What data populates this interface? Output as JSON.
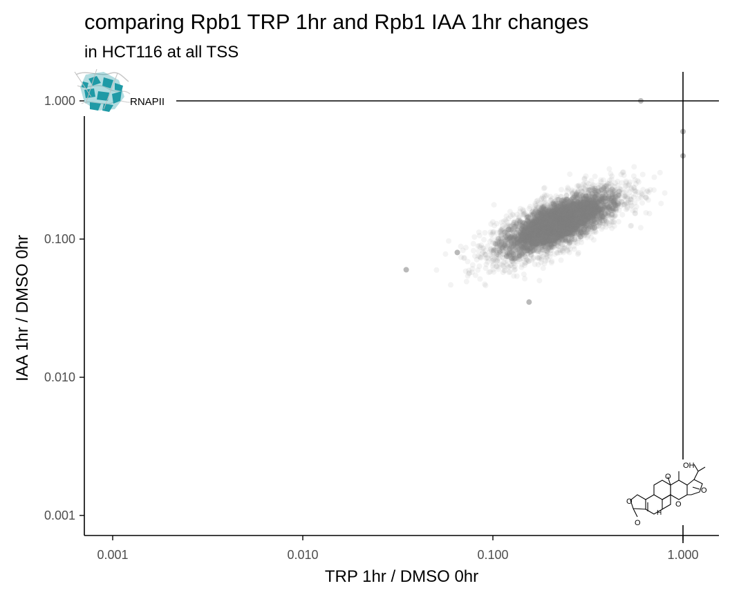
{
  "chart_data": {
    "type": "scatter",
    "title": "comparing Rpb1 TRP 1hr and Rpb1 IAA 1hr changes",
    "subtitle": "in HCT116 at all TSS",
    "xlabel": "TRP 1hr / DMSO 0hr",
    "ylabel": "IAA 1hr / DMSO 0hr",
    "x_scale": "log10",
    "y_scale": "log10",
    "xlim": [
      0.00065,
      1.6
    ],
    "ylim": [
      0.00072,
      1.8
    ],
    "x_ticks": [
      0.001,
      0.01,
      0.1,
      1
    ],
    "x_tick_labels": [
      "0.001",
      "0.010",
      "0.100",
      "1.000"
    ],
    "y_ticks": [
      0.001,
      0.01,
      0.1,
      1
    ],
    "y_tick_labels": [
      "0.001",
      "0.010",
      "0.100",
      "1.000"
    ],
    "reference_lines": {
      "vertical_x": 1.0,
      "horizontal_y": 1.0
    },
    "grid": false,
    "point_color": "#7f7f7f",
    "cloud": {
      "center_x": 0.22,
      "center_y": 0.13,
      "x_range": [
        0.035,
        1.1
      ],
      "y_range": [
        0.035,
        1.0
      ]
    },
    "highlighted_points": [
      {
        "x": 1.0,
        "y": 0.6
      },
      {
        "x": 1.0,
        "y": 0.4
      },
      {
        "x": 0.6,
        "y": 1.0
      },
      {
        "x": 0.155,
        "y": 0.035
      },
      {
        "x": 0.035,
        "y": 0.06
      },
      {
        "x": 0.065,
        "y": 0.08
      }
    ],
    "annotations": [
      {
        "label": "RNAPII",
        "icon": "rnapii-protein-icon",
        "position": "top-left, on y = 1.000 line"
      },
      {
        "label": "",
        "icon": "triptolide-molecule-icon",
        "position": "bottom-right, on x = 1.000 line"
      }
    ]
  },
  "structure_icon": {
    "oh_label": "OH",
    "o_label": "O",
    "h_label": "H"
  },
  "colors": {
    "protein_teal": "#1f9aa6",
    "axis": "#000000",
    "tick_text": "#4d4d4d"
  }
}
